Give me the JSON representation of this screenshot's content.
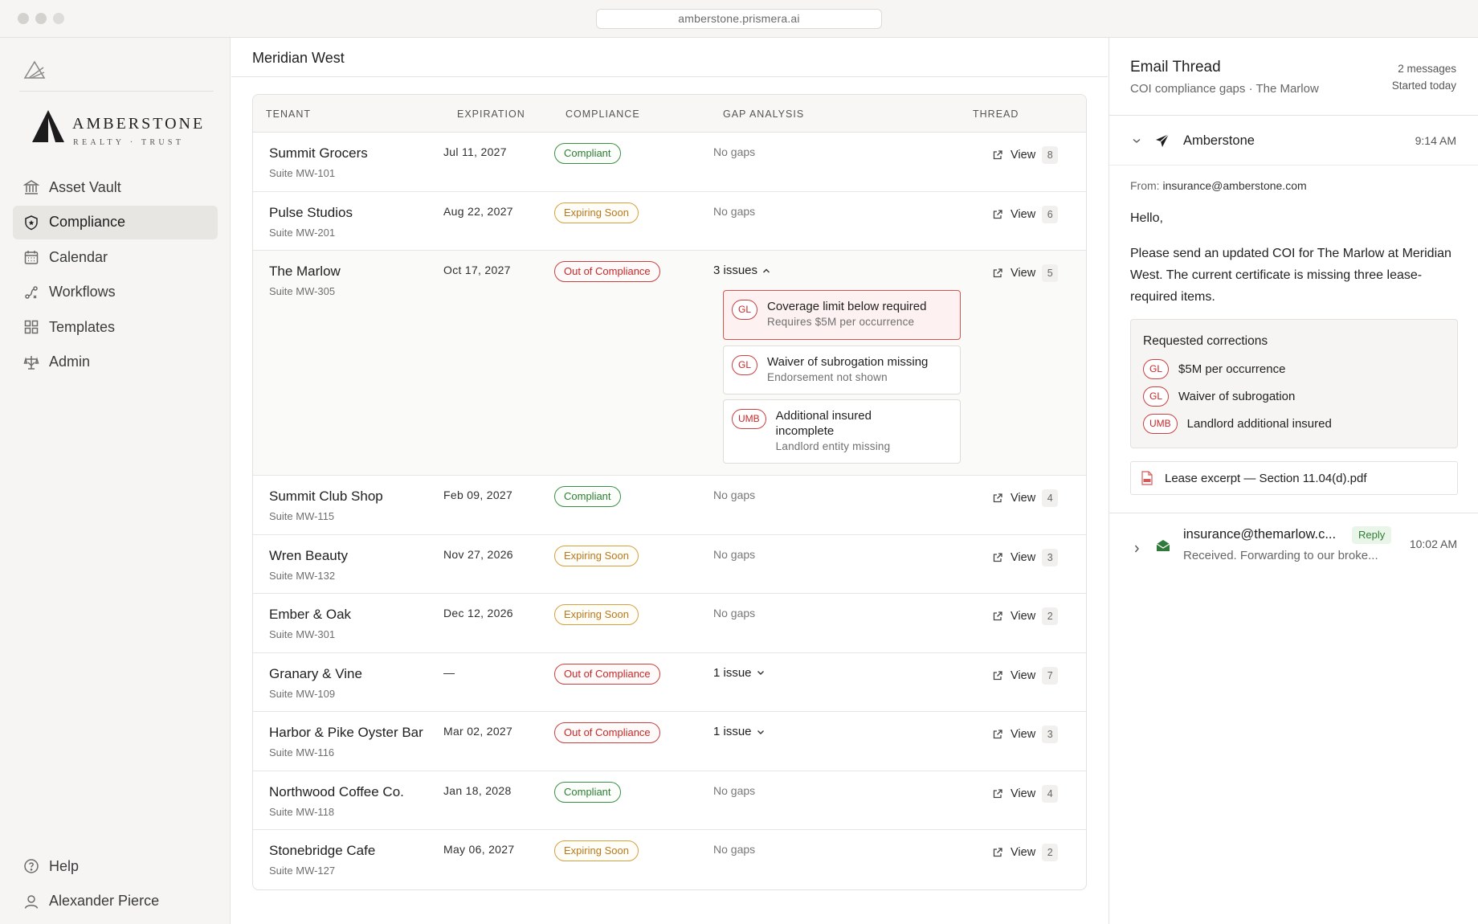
{
  "browser": {
    "url": "amberstone.prismera.ai"
  },
  "brand": {
    "name": "AMBERSTONE",
    "tagline": "REALTY · TRUST"
  },
  "sidebar": {
    "items": [
      {
        "label": "Asset Vault",
        "icon": "bank-icon",
        "active": false
      },
      {
        "label": "Compliance",
        "icon": "shield-icon",
        "active": true
      },
      {
        "label": "Calendar",
        "icon": "calendar-icon",
        "active": false
      },
      {
        "label": "Workflows",
        "icon": "workflow-icon",
        "active": false
      },
      {
        "label": "Templates",
        "icon": "grid-icon",
        "active": false
      },
      {
        "label": "Admin",
        "icon": "admin-icon",
        "active": false
      }
    ],
    "help_label": "Help",
    "user_name": "Alexander Pierce"
  },
  "main": {
    "title": "Meridian West",
    "columns": [
      "TENANT",
      "EXPIRATION",
      "COMPLIANCE",
      "GAP ANALYSIS",
      "THREAD"
    ],
    "view_label": "View",
    "rows": [
      {
        "tenant": "Summit Grocers",
        "suite": "Suite MW-101",
        "expiration": "Jul 11, 2027",
        "status": "Compliant",
        "gap": "No gaps",
        "thread_count": "8"
      },
      {
        "tenant": "Pulse Studios",
        "suite": "Suite MW-201",
        "expiration": "Aug 22, 2027",
        "status": "Expiring Soon",
        "gap": "No gaps",
        "thread_count": "6"
      },
      {
        "tenant": "The Marlow",
        "suite": "Suite MW-305",
        "expiration": "Oct 17, 2027",
        "status": "Out of Compliance",
        "gap": "3 issues",
        "thread_count": "5",
        "issues": [
          {
            "tag": "GL",
            "title": "Coverage limit below required",
            "sub": "Requires $5M per occurrence"
          },
          {
            "tag": "GL",
            "title": "Waiver of subrogation missing",
            "sub": "Endorsement not shown"
          },
          {
            "tag": "UMB",
            "title": "Additional insured incomplete",
            "sub": "Landlord entity missing"
          }
        ]
      },
      {
        "tenant": "Summit Club Shop",
        "suite": "Suite MW-115",
        "expiration": "Feb 09, 2027",
        "status": "Compliant",
        "gap": "No gaps",
        "thread_count": "4"
      },
      {
        "tenant": "Wren Beauty",
        "suite": "Suite MW-132",
        "expiration": "Nov 27, 2026",
        "status": "Expiring Soon",
        "gap": "No gaps",
        "thread_count": "3"
      },
      {
        "tenant": "Ember & Oak",
        "suite": "Suite MW-301",
        "expiration": "Dec 12, 2026",
        "status": "Expiring Soon",
        "gap": "No gaps",
        "thread_count": "2"
      },
      {
        "tenant": "Granary & Vine",
        "suite": "Suite MW-109",
        "expiration": "—",
        "status": "Out of Compliance",
        "gap": "1 issue",
        "thread_count": "7"
      },
      {
        "tenant": "Harbor & Pike Oyster Bar",
        "suite": "Suite MW-116",
        "expiration": "Mar 02, 2027",
        "status": "Out of Compliance",
        "gap": "1 issue",
        "thread_count": "3"
      },
      {
        "tenant": "Northwood Coffee Co.",
        "suite": "Suite MW-118",
        "expiration": "Jan 18, 2028",
        "status": "Compliant",
        "gap": "No gaps",
        "thread_count": "4"
      },
      {
        "tenant": "Stonebridge Cafe",
        "suite": "Suite MW-127",
        "expiration": "May 06, 2027",
        "status": "Expiring Soon",
        "gap": "No gaps",
        "thread_count": "2"
      }
    ]
  },
  "panel": {
    "title": "Email Thread",
    "subtitle": "COI compliance gaps · The Marlow",
    "message_count": "2 messages",
    "started": "Started today",
    "message1": {
      "sender": "Amberstone",
      "time": "9:14 AM",
      "from_label": "From:",
      "from_address": "insurance@amberstone.com",
      "greeting": "Hello,",
      "body": "Please send an updated COI for The Marlow at Meridian West. The current certificate is missing three lease-required items.",
      "corrections_title": "Requested corrections",
      "corrections": [
        {
          "tag": "GL",
          "text": "$5M per occurrence"
        },
        {
          "tag": "GL",
          "text": "Waiver of subrogation"
        },
        {
          "tag": "UMB",
          "text": "Landlord additional insured"
        }
      ],
      "attachment": "Lease excerpt — Section 11.04(d).pdf"
    },
    "message2": {
      "sender": "insurance@themarlow.c...",
      "badge": "Reply",
      "time": "10:02 AM",
      "snippet": "Received. Forwarding to our broke..."
    }
  },
  "colors": {
    "compliant": "#2e7d32",
    "expiring": "#b7791f",
    "out_of_compliance": "#c62828",
    "active_nav_bg": "#e8e6e2"
  }
}
